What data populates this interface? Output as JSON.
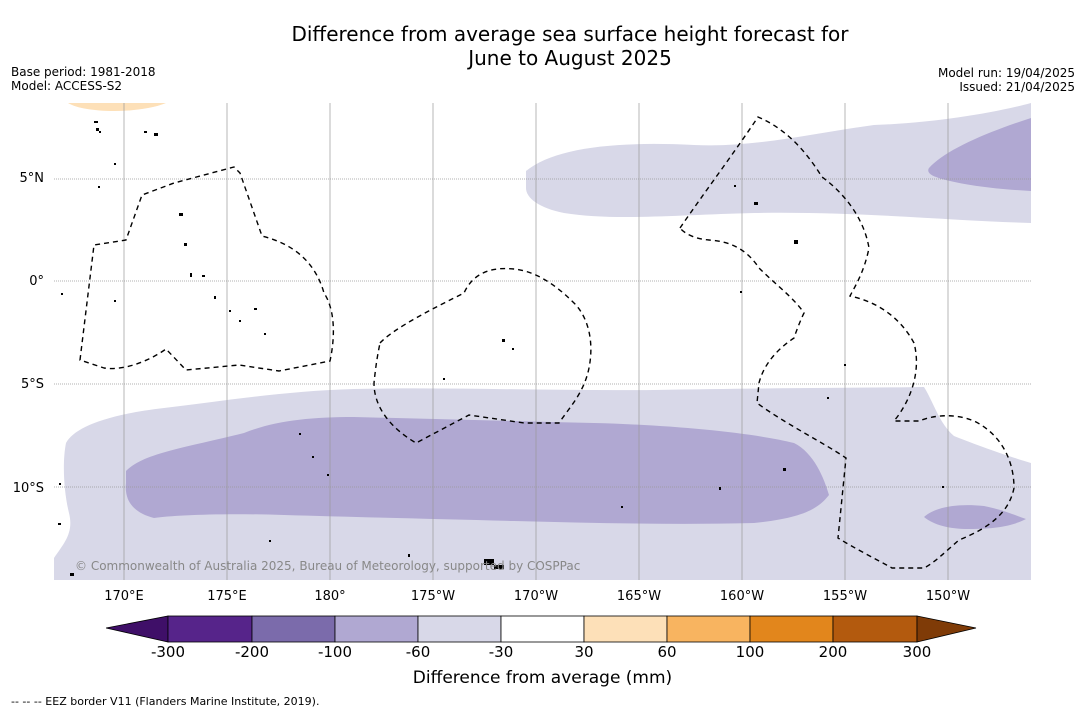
{
  "title_line1": "Difference from average sea surface height forecast for",
  "title_line2": "June to August 2025",
  "meta_left": {
    "base_period": "Base period: 1981-2018",
    "model": "Model: ACCESS-S2"
  },
  "meta_right": {
    "model_run": "Model run: 19/04/2025",
    "issued": "Issued: 21/04/2025"
  },
  "lat_labels": [
    "5°N",
    "0°",
    "5°S",
    "10°S"
  ],
  "lon_labels": [
    "170°E",
    "175°E",
    "180°",
    "175°W",
    "170°W",
    "165°W",
    "160°W",
    "155°W",
    "150°W"
  ],
  "copyright": "© Commonwealth of Australia 2025, Bureau of Meteorology, supported by COSPPac",
  "colorbar": {
    "ticks": [
      "-300",
      "-200",
      "-100",
      "-60",
      "-30",
      "30",
      "60",
      "100",
      "200",
      "300"
    ],
    "colors": [
      "#3f0f68",
      "#56248a",
      "#7b6bab",
      "#b0a8d2",
      "#d8d8e8",
      "#ffffff",
      "#fde0b8",
      "#f8b460",
      "#e2861c",
      "#b35a0e",
      "#7f3b07"
    ],
    "title": "Difference from average (mm)"
  },
  "footnote": "-- -- -- EEZ border V11 (Flanders Marine Institute, 2019)."
}
